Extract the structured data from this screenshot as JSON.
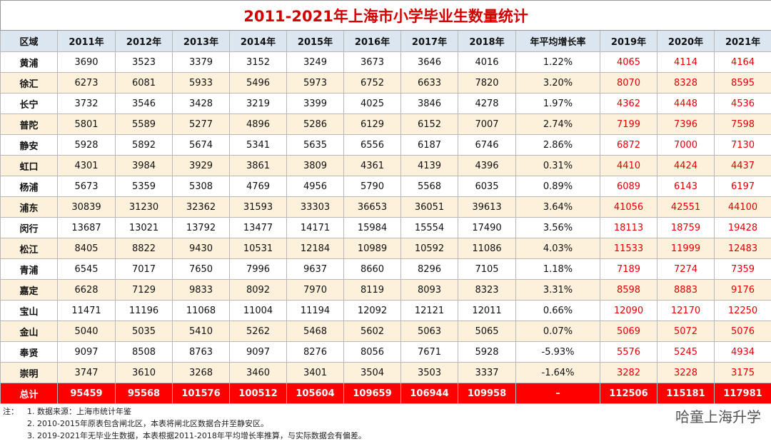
{
  "header": {
    "title": "2011-2021年上海市小学毕业生数量统计"
  },
  "table": {
    "columns": [
      "区域",
      "2011年",
      "2012年",
      "2013年",
      "2014年",
      "2015年",
      "2016年",
      "2017年",
      "2018年",
      "年平均增长率",
      "2019年",
      "2020年",
      "2021年"
    ],
    "rows": [
      [
        "黄浦",
        3690,
        3523,
        3379,
        3152,
        3249,
        3673,
        3646,
        4016,
        "1.22%",
        4065,
        4114,
        4164
      ],
      [
        "徐汇",
        6273,
        6081,
        5933,
        5496,
        5973,
        6752,
        6633,
        7820,
        "3.20%",
        8070,
        8328,
        8595
      ],
      [
        "长宁",
        3732,
        3546,
        3428,
        3219,
        3399,
        4025,
        3846,
        4278,
        "1.97%",
        4362,
        4448,
        4536
      ],
      [
        "普陀",
        5801,
        5589,
        5277,
        4896,
        5286,
        6129,
        6152,
        7007,
        "2.74%",
        7199,
        7396,
        7598
      ],
      [
        "静安",
        5928,
        5892,
        5674,
        5341,
        5635,
        6556,
        6187,
        6746,
        "2.86%",
        6872,
        7000,
        7130
      ],
      [
        "虹口",
        4301,
        3984,
        3929,
        3861,
        3809,
        4361,
        4139,
        4396,
        "0.31%",
        4410,
        4424,
        4437
      ],
      [
        "杨浦",
        5673,
        5359,
        5308,
        4769,
        4956,
        5790,
        5568,
        6035,
        "0.89%",
        6089,
        6143,
        6197
      ],
      [
        "浦东",
        30839,
        31230,
        32362,
        31593,
        33303,
        36653,
        36051,
        39613,
        "3.64%",
        41056,
        42551,
        44100
      ],
      [
        "闵行",
        13687,
        13021,
        13792,
        13477,
        14171,
        15984,
        15554,
        17490,
        "3.56%",
        18113,
        18759,
        19428
      ],
      [
        "松江",
        8405,
        8822,
        9430,
        10531,
        12184,
        10989,
        10592,
        11086,
        "4.03%",
        11533,
        11999,
        12483
      ],
      [
        "青浦",
        6545,
        7017,
        7650,
        7996,
        9637,
        8660,
        8296,
        7105,
        "1.18%",
        7189,
        7274,
        7359
      ],
      [
        "嘉定",
        6628,
        7129,
        9833,
        8092,
        7970,
        8119,
        8093,
        8323,
        "3.31%",
        8598,
        8883,
        9176
      ],
      [
        "宝山",
        11471,
        11196,
        11068,
        11004,
        11194,
        12092,
        12121,
        12011,
        "0.66%",
        12090,
        12170,
        12250
      ],
      [
        "金山",
        5040,
        5035,
        5410,
        5262,
        5468,
        5602,
        5063,
        5065,
        "0.07%",
        5069,
        5072,
        5076
      ],
      [
        "奉贤",
        9097,
        8508,
        8763,
        9097,
        8276,
        8056,
        7671,
        5928,
        "-5.93%",
        5576,
        5245,
        4934
      ],
      [
        "崇明",
        3747,
        3610,
        3268,
        3460,
        3401,
        3504,
        3503,
        3337,
        "-1.64%",
        3282,
        3228,
        3175
      ]
    ],
    "total": [
      "总计",
      95459,
      95568,
      101576,
      100512,
      105604,
      109659,
      106944,
      109958,
      "–",
      112506,
      115181,
      117981
    ]
  },
  "notes": {
    "label": "注：",
    "lines": [
      "1. 数据来源：上海市统计年鉴",
      "2. 2010-2015年原表包含闸北区，本表将闸北区数据合并至静安区。",
      "3. 2019-2021年无毕业生数据，本表根据2011-2018年平均增长率推算，与实际数据会有偏差。"
    ]
  },
  "watermark": "哈童上海升学"
}
